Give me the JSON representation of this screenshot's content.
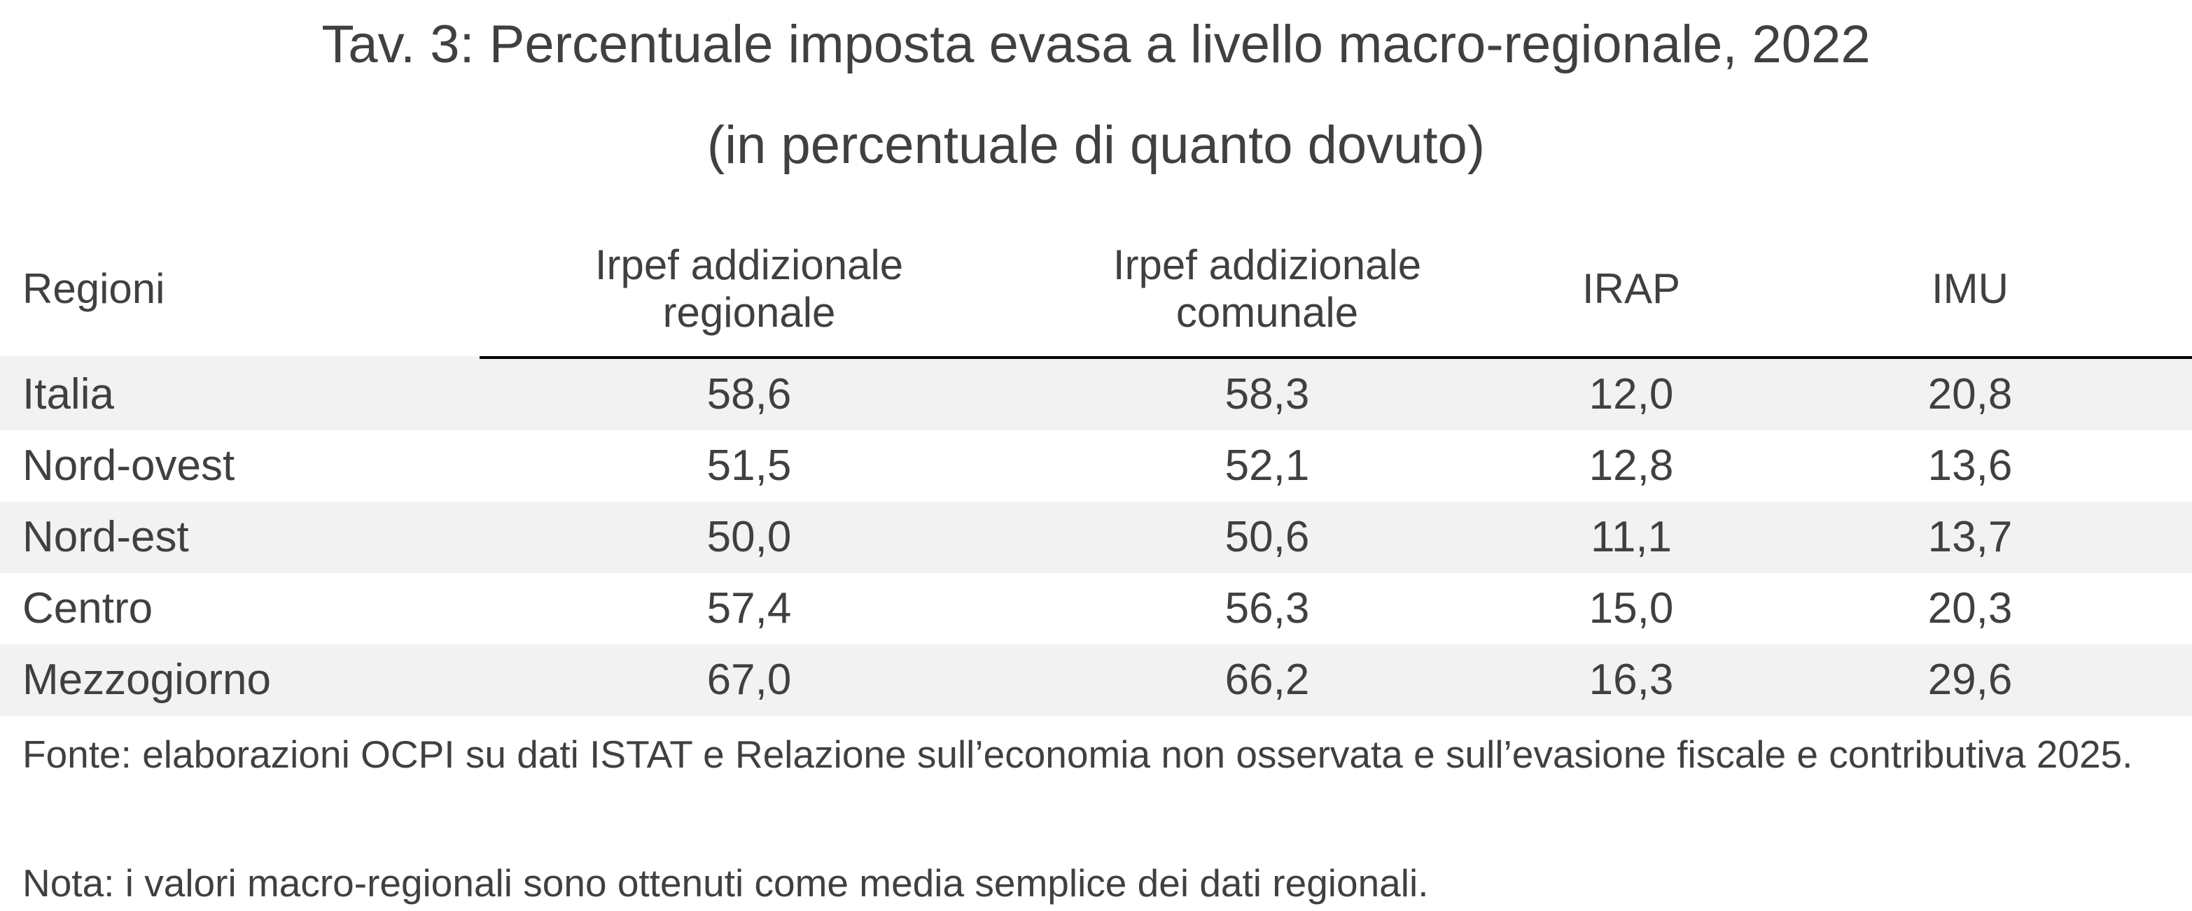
{
  "title": "Tav. 3: Percentuale imposta evasa a livello macro-regionale, 2022",
  "subtitle": "(in percentuale di quanto dovuto)",
  "columns": [
    "Regioni",
    "Irpef addizionale regionale",
    "Irpef addizionale comunale",
    "IRAP",
    "IMU"
  ],
  "rows": [
    {
      "region": "Italia",
      "values": [
        "58,6",
        "58,3",
        "12,0",
        "20,8"
      ]
    },
    {
      "region": "Nord-ovest",
      "values": [
        "51,5",
        "52,1",
        "12,8",
        "13,6"
      ]
    },
    {
      "region": "Nord-est",
      "values": [
        "50,0",
        "50,6",
        "11,1",
        "13,7"
      ]
    },
    {
      "region": "Centro",
      "values": [
        "57,4",
        "56,3",
        "15,0",
        "20,3"
      ]
    },
    {
      "region": "Mezzogiorno",
      "values": [
        "67,0",
        "66,2",
        "16,3",
        "29,6"
      ]
    }
  ],
  "source": "Fonte: elaborazioni OCPI su dati ISTAT e Relazione sull’economia non osservata e sull’evasione fiscale e contributiva 2025.",
  "note": "Nota: i valori macro-regionali sono ottenuti come media semplice dei dati regionali."
}
